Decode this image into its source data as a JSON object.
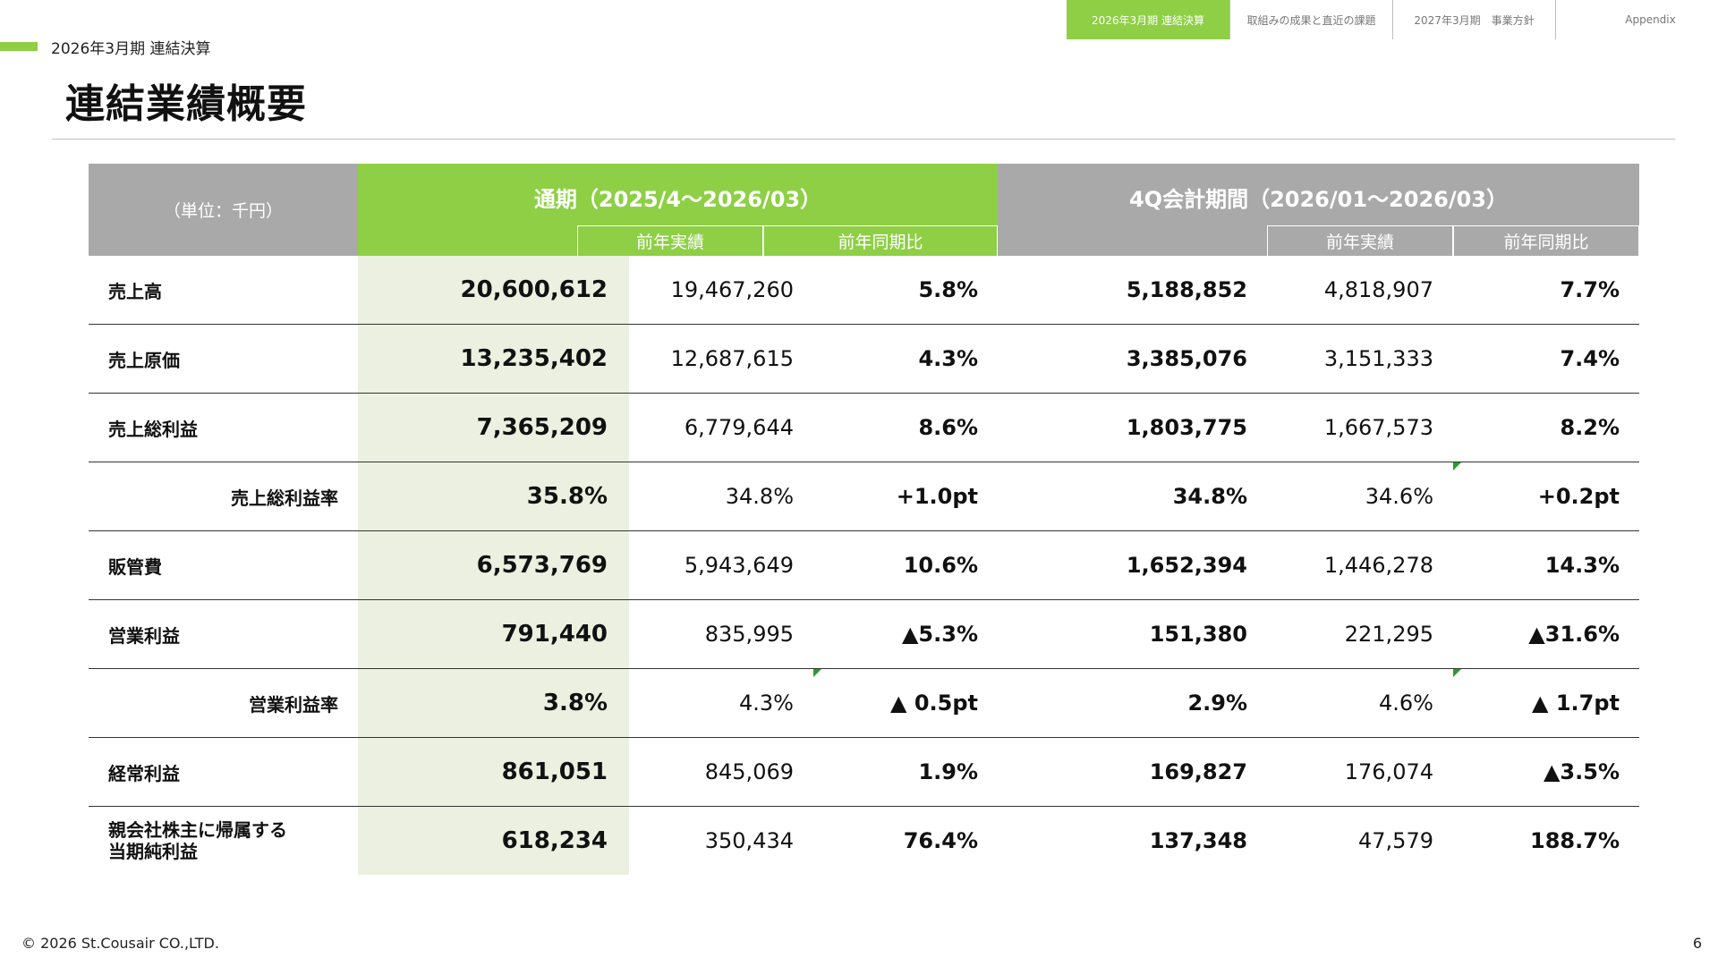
{
  "nav": {
    "tabs": [
      "2026年3月期 連結決算",
      "取組みの成果と直近の課題",
      "2027年3月期　事業方針",
      "Appendix"
    ],
    "active_index": 0
  },
  "section_label": "2026年3月期 連結決算",
  "page_title": "連結業績概要",
  "table": {
    "unit_label": "（単位：千円）",
    "fy": {
      "title": "通期（2025/4～2026/03）",
      "sub1": "前年実績",
      "sub2": "前年同期比"
    },
    "q4": {
      "title": "4Q会計期間（2026/01～2026/03）",
      "sub1": "前年実績",
      "sub2": "前年同期比"
    },
    "rows": [
      {
        "label": "売上高",
        "fy": "20,600,612",
        "fy_prev": "19,467,260",
        "fy_yoy": "5.8%",
        "q4": "5,188,852",
        "q4_prev": "4,818,907",
        "q4_yoy": "7.7%"
      },
      {
        "label": "売上原価",
        "fy": "13,235,402",
        "fy_prev": "12,687,615",
        "fy_yoy": "4.3%",
        "q4": "3,385,076",
        "q4_prev": "3,151,333",
        "q4_yoy": "7.4%"
      },
      {
        "label": "売上総利益",
        "fy": "7,365,209",
        "fy_prev": "6,779,644",
        "fy_yoy": "8.6%",
        "q4": "1,803,775",
        "q4_prev": "1,667,573",
        "q4_yoy": "8.2%"
      },
      {
        "label": "売上総利益率",
        "fy": "35.8%",
        "fy_prev": "34.8%",
        "fy_yoy": "+1.0pt",
        "q4": "34.8%",
        "q4_prev": "34.6%",
        "q4_yoy": "+0.2pt"
      },
      {
        "label": "販管費",
        "fy": "6,573,769",
        "fy_prev": "5,943,649",
        "fy_yoy": "10.6%",
        "q4": "1,652,394",
        "q4_prev": "1,446,278",
        "q4_yoy": "14.3%"
      },
      {
        "label": "営業利益",
        "fy": "791,440",
        "fy_prev": "835,995",
        "fy_yoy": "▲5.3%",
        "q4": "151,380",
        "q4_prev": "221,295",
        "q4_yoy": "▲31.6%"
      },
      {
        "label": "営業利益率",
        "fy": "3.8%",
        "fy_prev": "4.3%",
        "fy_yoy": "▲ 0.5pt",
        "q4": "2.9%",
        "q4_prev": "4.6%",
        "q4_yoy": "▲ 1.7pt"
      },
      {
        "label": "経常利益",
        "fy": "861,051",
        "fy_prev": "845,069",
        "fy_yoy": "1.9%",
        "q4": "169,827",
        "q4_prev": "176,074",
        "q4_yoy": "▲3.5%"
      },
      {
        "label": "親会社株主に帰属する",
        "label2": "当期純利益",
        "fy": "618,234",
        "fy_prev": "350,434",
        "fy_yoy": "76.4%",
        "q4": "137,348",
        "q4_prev": "47,579",
        "q4_yoy": "188.7%"
      }
    ]
  },
  "footer": "© 2026 St.Cousair CO.,LTD.",
  "page_number": "6",
  "colors": {
    "accent_green": "#8ecf45",
    "header_gray": "#a9a9a9",
    "highlight_column": "#ebf0e0",
    "marker_green": "#2a9d2a"
  }
}
